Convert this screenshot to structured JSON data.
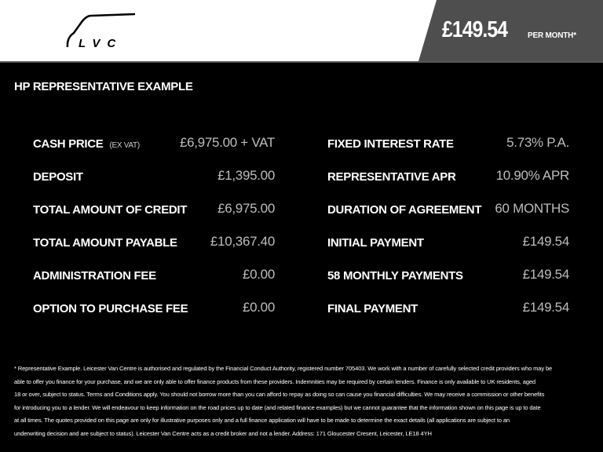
{
  "header": {
    "logo_text": "LVC",
    "price": "£149.54",
    "per_month": "PER MONTH*",
    "panel_color": "#4e4e4e"
  },
  "section_title": "HP REPRESENTATIVE EXAMPLE",
  "left": [
    {
      "label": "CASH PRICE",
      "sub": "(EX VAT)",
      "value": "£6,975.00 + VAT"
    },
    {
      "label": "DEPOSIT",
      "value": "£1,395.00"
    },
    {
      "label": "TOTAL AMOUNT OF CREDIT",
      "value": "£6,975.00"
    },
    {
      "label": "TOTAL AMOUNT PAYABLE",
      "value": "£10,367.40"
    },
    {
      "label": "ADMINISTRATION FEE",
      "value": "£0.00"
    },
    {
      "label": "OPTION TO PURCHASE FEE",
      "value": "£0.00"
    }
  ],
  "right": [
    {
      "label": "FIXED INTEREST RATE",
      "value": "5.73% P.A."
    },
    {
      "label": "REPRESENTATIVE APR",
      "value": "10.90% APR"
    },
    {
      "label": "DURATION OF AGREEMENT",
      "value": "60 MONTHS"
    },
    {
      "label": "INITIAL PAYMENT",
      "value": "£149.54"
    },
    {
      "label": "58 MONTHLY PAYMENTS",
      "value": "£149.54"
    },
    {
      "label": "FINAL PAYMENT",
      "value": "£149.54"
    }
  ],
  "footer": [
    "* Representative Example. Leicester Van Centre is authorised and regulated by the Financial Conduct Authority, registered number 705403. We work with a number of carefully selected credit providers who may be",
    "able to offer you finance for your purchase, and we are only able to offer finance products from these providers. Indemnities may be required by certain lenders. Finance is only available to UK residents, aged",
    "18 or over, subject to status. Terms and Conditions apply. You should not borrow more than you can afford to repay as doing so can cause you financial difficulties. We may receive a commission or other benefits",
    "for introducing you to a lender. We will endeavour to keep information on the road prices up to date (and related finance examples) but we cannot guarantee that the information shown on this page is up to date",
    "at all times. The quotes provided on this page are only for illustrative purposes only and a full finance application will have to be made to determine the exact details (all applications are subject to an",
    "underwriting decision and are subject to status). Leicester Van Centre acts as a credit broker and not a lender. Address: 171 Gloucester Cresent, Leicester, LE18 4YH"
  ]
}
